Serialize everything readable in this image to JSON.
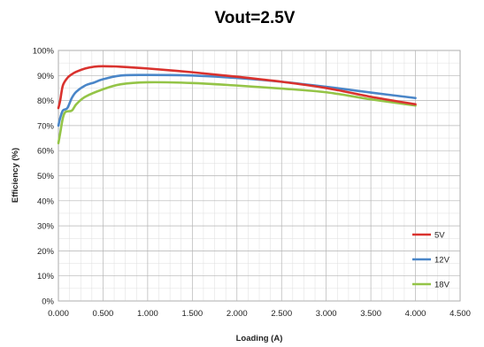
{
  "chart_data": {
    "type": "line",
    "title": "Vout=2.5V",
    "xlabel": "Loading (A)",
    "ylabel": "Efficiency (%)",
    "xlim": [
      0,
      4.5
    ],
    "ylim": [
      0,
      100
    ],
    "x_ticks": [
      "0.000",
      "0.500",
      "1.000",
      "1.500",
      "2.000",
      "2.500",
      "3.000",
      "3.500",
      "4.000",
      "4.500"
    ],
    "y_ticks": [
      "0%",
      "10%",
      "20%",
      "30%",
      "40%",
      "50%",
      "60%",
      "70%",
      "80%",
      "90%",
      "100%"
    ],
    "grid": true,
    "legend_position": "bottom-right",
    "series": [
      {
        "name": "5V",
        "color": "#d9322e",
        "points": [
          [
            0,
            77
          ],
          [
            0.02,
            80
          ],
          [
            0.05,
            86
          ],
          [
            0.1,
            89
          ],
          [
            0.15,
            90.5
          ],
          [
            0.2,
            91.5
          ],
          [
            0.3,
            92.8
          ],
          [
            0.4,
            93.5
          ],
          [
            0.5,
            93.7
          ],
          [
            0.7,
            93.5
          ],
          [
            1.0,
            92.8
          ],
          [
            1.5,
            91.3
          ],
          [
            2.0,
            89.5
          ],
          [
            2.5,
            87.5
          ],
          [
            3.0,
            85
          ],
          [
            3.5,
            81.5
          ],
          [
            4.0,
            78.5
          ]
        ]
      },
      {
        "name": "12V",
        "color": "#4a86c8",
        "points": [
          [
            0,
            70
          ],
          [
            0.02,
            73
          ],
          [
            0.05,
            76
          ],
          [
            0.1,
            77
          ],
          [
            0.15,
            81
          ],
          [
            0.2,
            83.5
          ],
          [
            0.3,
            86
          ],
          [
            0.4,
            87.2
          ],
          [
            0.5,
            88.5
          ],
          [
            0.7,
            90
          ],
          [
            1.0,
            90.2
          ],
          [
            1.5,
            90
          ],
          [
            2.0,
            89
          ],
          [
            2.5,
            87.5
          ],
          [
            3.0,
            85.5
          ],
          [
            3.5,
            83.2
          ],
          [
            4.0,
            81
          ]
        ]
      },
      {
        "name": "18V",
        "color": "#94c447",
        "points": [
          [
            0,
            63
          ],
          [
            0.02,
            67
          ],
          [
            0.05,
            73
          ],
          [
            0.08,
            75.5
          ],
          [
            0.15,
            76
          ],
          [
            0.2,
            78.5
          ],
          [
            0.3,
            81.5
          ],
          [
            0.5,
            84.5
          ],
          [
            0.7,
            86.5
          ],
          [
            1.0,
            87.3
          ],
          [
            1.5,
            87
          ],
          [
            2.0,
            86
          ],
          [
            2.5,
            84.8
          ],
          [
            3.0,
            83.3
          ],
          [
            3.5,
            80.5
          ],
          [
            4.0,
            78
          ]
        ]
      }
    ]
  }
}
